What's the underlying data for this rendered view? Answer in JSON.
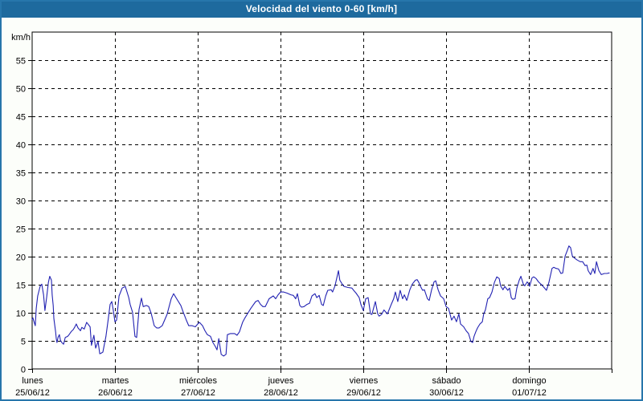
{
  "window": {
    "title": "Velocidad del viento 0-60 [km/h]"
  },
  "colors": {
    "titlebar_bg": "#1e6a9e",
    "window_border": "#2776ab",
    "page_bg": "#fcfefa",
    "plot_bg": "#ffffff",
    "frame": "#000000",
    "grid": "#000000",
    "tick_text": "#000000",
    "title_text": "#ffffff",
    "line": "#2222b2"
  },
  "chart_data": {
    "type": "line",
    "title": "Velocidad del viento 0-60 [km/h]",
    "ylabel": "km/h",
    "ylim": [
      0,
      60
    ],
    "y_ticks": [
      0,
      5,
      10,
      15,
      20,
      25,
      30,
      35,
      40,
      45,
      50,
      55
    ],
    "x_span_hours": 168,
    "grid": "dashed",
    "legend_position": "none",
    "x_day_ticks": [
      {
        "hour": 0,
        "day": "lunes",
        "date": "25/06/12"
      },
      {
        "hour": 24,
        "day": "martes",
        "date": "26/06/12"
      },
      {
        "hour": 48,
        "day": "miércoles",
        "date": "27/06/12"
      },
      {
        "hour": 72,
        "day": "jueves",
        "date": "28/06/12"
      },
      {
        "hour": 96,
        "day": "viernes",
        "date": "29/06/12"
      },
      {
        "hour": 120,
        "day": "sábado",
        "date": "30/06/12"
      },
      {
        "hour": 144,
        "day": "domingo",
        "date": "01/07/12"
      }
    ],
    "series": [
      {
        "name": "velocidad del viento",
        "color": "#2222b2",
        "points": [
          [
            0,
            8.8
          ],
          [
            0.2,
            9.1
          ],
          [
            0.7,
            8.1
          ],
          [
            0.9,
            7.7
          ],
          [
            1.2,
            10.8
          ],
          [
            1.6,
            13
          ],
          [
            2.3,
            14.7
          ],
          [
            2.8,
            15.1
          ],
          [
            3.3,
            13.2
          ],
          [
            3.7,
            10.4
          ],
          [
            4.2,
            12.7
          ],
          [
            4.7,
            15.4
          ],
          [
            5.1,
            16.5
          ],
          [
            5.6,
            15.8
          ],
          [
            5.8,
            13.2
          ],
          [
            6.1,
            11.3
          ],
          [
            6.3,
            9
          ],
          [
            6.8,
            6.6
          ],
          [
            7,
            5.4
          ],
          [
            7.2,
            4.7
          ],
          [
            7.5,
            5.6
          ],
          [
            7.9,
            6.1
          ],
          [
            8.2,
            5.1
          ],
          [
            8.6,
            4.7
          ],
          [
            9.1,
            4.4
          ],
          [
            9.6,
            5.6
          ],
          [
            10.3,
            5.8
          ],
          [
            10.7,
            6.1
          ],
          [
            11.4,
            6.7
          ],
          [
            11.9,
            7
          ],
          [
            12.3,
            7.4
          ],
          [
            12.8,
            8
          ],
          [
            13.3,
            7.3
          ],
          [
            14,
            6.8
          ],
          [
            14.4,
            7.4
          ],
          [
            15.1,
            7.1
          ],
          [
            15.8,
            8.3
          ],
          [
            16.8,
            7.5
          ],
          [
            17.2,
            4.2
          ],
          [
            17.9,
            6
          ],
          [
            18.4,
            3.7
          ],
          [
            19.1,
            4.9
          ],
          [
            19.6,
            2.7
          ],
          [
            20,
            2.8
          ],
          [
            20.5,
            3
          ],
          [
            21.4,
            5.8
          ],
          [
            22.1,
            9
          ],
          [
            22.6,
            11.5
          ],
          [
            23.1,
            12
          ],
          [
            23.5,
            10.5
          ],
          [
            24,
            8.4
          ],
          [
            24.5,
            8.7
          ],
          [
            25.2,
            13
          ],
          [
            26.1,
            14.4
          ],
          [
            27,
            14.7
          ],
          [
            28,
            12.7
          ],
          [
            28.4,
            11.5
          ],
          [
            29.1,
            10.1
          ],
          [
            29.8,
            5.8
          ],
          [
            30.3,
            5.6
          ],
          [
            31,
            10.6
          ],
          [
            31.7,
            12.6
          ],
          [
            32.2,
            11.1
          ],
          [
            33.1,
            11.3
          ],
          [
            33.8,
            11.1
          ],
          [
            34.5,
            9.9
          ],
          [
            35.4,
            7.7
          ],
          [
            36.1,
            7.3
          ],
          [
            36.8,
            7.3
          ],
          [
            37.7,
            7.7
          ],
          [
            39.1,
            9.7
          ],
          [
            40.3,
            12.5
          ],
          [
            41,
            13.4
          ],
          [
            41.9,
            12.5
          ],
          [
            43.1,
            11.3
          ],
          [
            43.8,
            10.1
          ],
          [
            44.7,
            8.7
          ],
          [
            45.4,
            7.7
          ],
          [
            46.4,
            7.7
          ],
          [
            47.3,
            7.5
          ],
          [
            48,
            8
          ],
          [
            48.5,
            8.3
          ],
          [
            49.4,
            7.7
          ],
          [
            50.1,
            6.8
          ],
          [
            50.8,
            6.1
          ],
          [
            51.7,
            5.8
          ],
          [
            52.4,
            4.7
          ],
          [
            53.1,
            4
          ],
          [
            53.6,
            3.4
          ],
          [
            54.1,
            5.4
          ],
          [
            54.8,
            2.6
          ],
          [
            55.5,
            2.3
          ],
          [
            56.2,
            2.6
          ],
          [
            56.6,
            6.1
          ],
          [
            57.5,
            6.3
          ],
          [
            58.7,
            6.3
          ],
          [
            59.4,
            6
          ],
          [
            60.1,
            6.6
          ],
          [
            61,
            8.3
          ],
          [
            61.7,
            9.1
          ],
          [
            62.4,
            9.8
          ],
          [
            63.4,
            10.8
          ],
          [
            64.8,
            12
          ],
          [
            65.5,
            12.2
          ],
          [
            66.2,
            11.5
          ],
          [
            66.9,
            11.1
          ],
          [
            67.6,
            11.1
          ],
          [
            68.7,
            12.5
          ],
          [
            69.9,
            13
          ],
          [
            70.6,
            12.5
          ],
          [
            71.3,
            13.2
          ],
          [
            72,
            13.7
          ],
          [
            72.9,
            13.7
          ],
          [
            73.9,
            13.5
          ],
          [
            75,
            13.2
          ],
          [
            75.7,
            13.1
          ],
          [
            76.4,
            12.5
          ],
          [
            76.9,
            13.4
          ],
          [
            77.6,
            11.3
          ],
          [
            78.1,
            11
          ],
          [
            78.8,
            11.1
          ],
          [
            79.7,
            11.5
          ],
          [
            80.4,
            11.7
          ],
          [
            81.1,
            13
          ],
          [
            82,
            13.4
          ],
          [
            82.5,
            12.7
          ],
          [
            83.2,
            13.1
          ],
          [
            83.9,
            11.5
          ],
          [
            84.4,
            11.3
          ],
          [
            85.1,
            13
          ],
          [
            85.7,
            14
          ],
          [
            86.7,
            14.1
          ],
          [
            87.1,
            13.7
          ],
          [
            87.8,
            14.8
          ],
          [
            88.8,
            17.5
          ],
          [
            89.2,
            15.8
          ],
          [
            89.9,
            15.1
          ],
          [
            90.4,
            14.7
          ],
          [
            91.6,
            14.5
          ],
          [
            92.7,
            14.4
          ],
          [
            93.2,
            14
          ],
          [
            93.9,
            13.5
          ],
          [
            94.8,
            12.7
          ],
          [
            95.3,
            11.5
          ],
          [
            96,
            10.4
          ],
          [
            96.7,
            12.5
          ],
          [
            97.4,
            12.7
          ],
          [
            98.1,
            9.8
          ],
          [
            98.5,
            9.7
          ],
          [
            99.5,
            12
          ],
          [
            100.2,
            9.8
          ],
          [
            100.6,
            9.4
          ],
          [
            101.3,
            9.7
          ],
          [
            102,
            10.5
          ],
          [
            103,
            9.8
          ],
          [
            104.1,
            11.5
          ],
          [
            104.8,
            12.5
          ],
          [
            105.3,
            13.7
          ],
          [
            106,
            12
          ],
          [
            106.7,
            14
          ],
          [
            107.4,
            12.5
          ],
          [
            107.9,
            13.2
          ],
          [
            108.6,
            12.2
          ],
          [
            109.5,
            14.1
          ],
          [
            110.2,
            15.1
          ],
          [
            111.1,
            15.8
          ],
          [
            111.6,
            15.9
          ],
          [
            112.1,
            15.4
          ],
          [
            112.5,
            14.8
          ],
          [
            113.2,
            14
          ],
          [
            113.7,
            14.1
          ],
          [
            114.6,
            12.5
          ],
          [
            115.1,
            12.2
          ],
          [
            115.8,
            14.1
          ],
          [
            116.5,
            15.5
          ],
          [
            117,
            15.7
          ],
          [
            117.7,
            14.1
          ],
          [
            118.4,
            13
          ],
          [
            119.3,
            12.5
          ],
          [
            120,
            11.1
          ],
          [
            120.7,
            10.8
          ],
          [
            121.6,
            8.7
          ],
          [
            122.3,
            9.4
          ],
          [
            123,
            8.4
          ],
          [
            123.7,
            9.8
          ],
          [
            124.2,
            8
          ],
          [
            125.1,
            7.5
          ],
          [
            125.8,
            6.8
          ],
          [
            126.5,
            6.3
          ],
          [
            127.2,
            4.9
          ],
          [
            127.7,
            4.7
          ],
          [
            128.1,
            5.8
          ],
          [
            128.6,
            6.6
          ],
          [
            129.1,
            7.3
          ],
          [
            129.8,
            8
          ],
          [
            130.5,
            8.4
          ],
          [
            130.9,
            9.8
          ],
          [
            131.4,
            10.5
          ],
          [
            132.1,
            12.5
          ],
          [
            132.6,
            12.7
          ],
          [
            133.3,
            13.7
          ],
          [
            134,
            15.4
          ],
          [
            134.7,
            16.4
          ],
          [
            135.4,
            16.1
          ],
          [
            135.8,
            14.8
          ],
          [
            136.5,
            14.1
          ],
          [
            137,
            14.7
          ],
          [
            137.9,
            14
          ],
          [
            138.4,
            14.4
          ],
          [
            138.9,
            12.7
          ],
          [
            139.3,
            12.4
          ],
          [
            140,
            12.5
          ],
          [
            140.5,
            14.4
          ],
          [
            141.2,
            15.8
          ],
          [
            141.7,
            16.5
          ],
          [
            142.4,
            15.1
          ],
          [
            142.8,
            14.8
          ],
          [
            143.5,
            15.5
          ],
          [
            144,
            15.1
          ],
          [
            144.2,
            14.7
          ],
          [
            144.9,
            16.2
          ],
          [
            145.4,
            16.4
          ],
          [
            146.1,
            16.1
          ],
          [
            146.8,
            15.5
          ],
          [
            147.5,
            15.1
          ],
          [
            148.4,
            14.5
          ],
          [
            149.1,
            14
          ],
          [
            149.8,
            15.4
          ],
          [
            150.7,
            17.9
          ],
          [
            151.2,
            18.1
          ],
          [
            151.9,
            17.9
          ],
          [
            152.6,
            17.8
          ],
          [
            153.3,
            17
          ],
          [
            153.8,
            17.1
          ],
          [
            154.5,
            20.1
          ],
          [
            155.2,
            21.2
          ],
          [
            155.6,
            21.9
          ],
          [
            156.1,
            21.6
          ],
          [
            156.6,
            20.1
          ],
          [
            157.3,
            19.7
          ],
          [
            158,
            19.4
          ],
          [
            158.9,
            19.1
          ],
          [
            159.6,
            19.1
          ],
          [
            160.3,
            18.4
          ],
          [
            160.8,
            18.5
          ],
          [
            161.2,
            17.5
          ],
          [
            161.9,
            16.8
          ],
          [
            162.6,
            17.9
          ],
          [
            163.1,
            17
          ],
          [
            163.6,
            19.1
          ],
          [
            164.3,
            17.5
          ],
          [
            165,
            16.8
          ],
          [
            165.9,
            17
          ],
          [
            166.6,
            17
          ],
          [
            167.3,
            17.1
          ]
        ]
      }
    ]
  }
}
